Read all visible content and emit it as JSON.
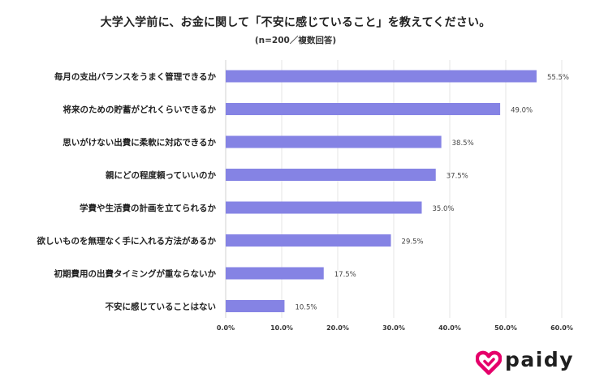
{
  "title": "大学入学前に、お金に関して「不安に感じていること」を教えてください。",
  "subtitle": "(n=200／複数回答)",
  "brand": {
    "name": "paidy",
    "color": "#e5006a"
  },
  "chart_data": {
    "type": "bar",
    "orientation": "horizontal",
    "categories": [
      "毎月の支出バランスをうまく管理できるか",
      "将来のための貯蓄がどれくらいできるか",
      "思いがけない出費に柔軟に対応できるか",
      "親にどの程度頼っていいのか",
      "学費や生活費の計画を立てられるか",
      "欲しいものを無理なく手に入れる方法があるか",
      "初期費用の出費タイミングが重ならないか",
      "不安に感じていることはない"
    ],
    "values": [
      55.5,
      49.0,
      38.5,
      37.5,
      35.0,
      29.5,
      17.5,
      10.5
    ],
    "value_labels": [
      "55.5%",
      "49.0%",
      "38.5%",
      "37.5%",
      "35.0%",
      "29.5%",
      "17.5%",
      "10.5%"
    ],
    "x_ticks": [
      "0.0%",
      "10.0%",
      "20.0%",
      "30.0%",
      "40.0%",
      "50.0%",
      "60.0%"
    ],
    "xlim": [
      0,
      60
    ],
    "grid": true,
    "legend": "none",
    "bar_color": "#8583e4"
  }
}
